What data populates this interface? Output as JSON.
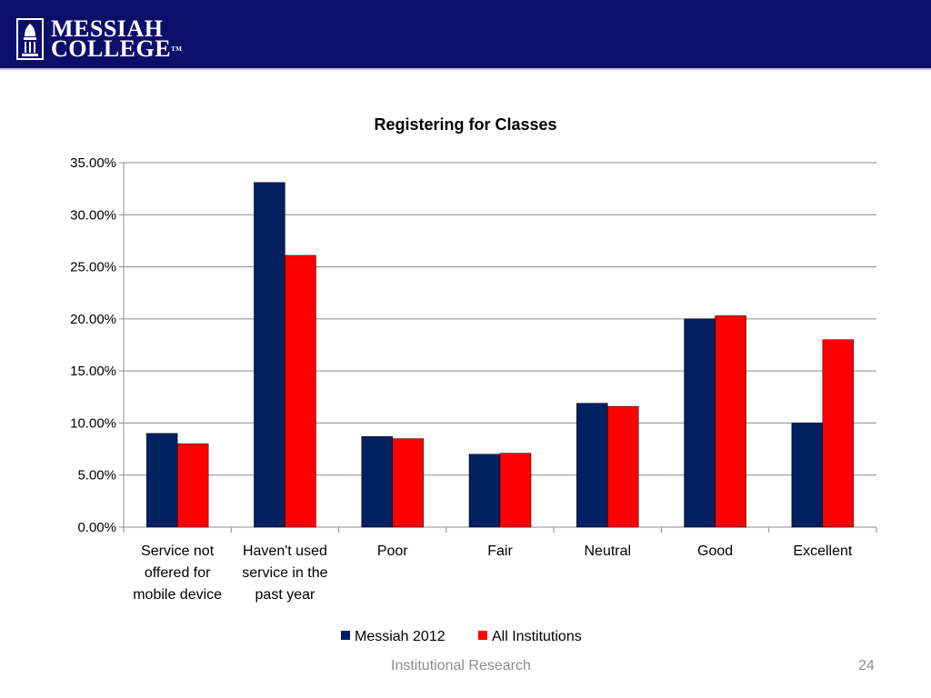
{
  "header": {
    "logo_line1": "MESSIAH",
    "logo_line2": "COLLEGE",
    "logo_tm": "TM",
    "background_color": "#0b0f6b"
  },
  "chart_data": {
    "type": "bar",
    "title": "Registering for Classes",
    "xlabel": "",
    "ylabel": "",
    "categories": [
      [
        "Service not",
        "offered for",
        "mobile device"
      ],
      [
        "Haven't used",
        "service in the",
        "past year"
      ],
      [
        "Poor"
      ],
      [
        "Fair"
      ],
      [
        "Neutral"
      ],
      [
        "Good"
      ],
      [
        "Excellent"
      ]
    ],
    "series": [
      {
        "name": "Messiah 2012",
        "color": "#002060",
        "values": [
          9.0,
          33.1,
          8.7,
          7.0,
          11.9,
          20.0,
          10.0
        ]
      },
      {
        "name": "All Institutions",
        "color": "#ff0000",
        "values": [
          8.0,
          26.1,
          8.5,
          7.1,
          11.6,
          20.3,
          18.0
        ]
      }
    ],
    "ylim": [
      0,
      35
    ],
    "yticks": [
      "0.00%",
      "5.00%",
      "10.00%",
      "15.00%",
      "20.00%",
      "25.00%",
      "30.00%",
      "35.00%"
    ],
    "grid": true,
    "legend_position": "bottom"
  },
  "footer": {
    "text": "Institutional Research",
    "page_number": "24"
  }
}
